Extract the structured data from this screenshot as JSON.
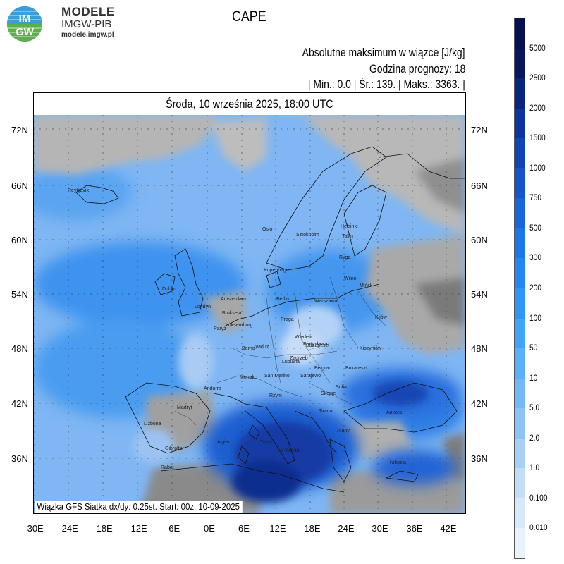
{
  "logo": {
    "text_top": "IM",
    "text_bottom": "GW",
    "title": "MODELE",
    "subtitle": "IMGW-PIB",
    "url": "modele.imgw.pl"
  },
  "header": {
    "field_name": "CAPE",
    "description": "Absolutne maksimum w wiązce [J/kg]",
    "forecast_hour": "Godzina prognozy: 18",
    "stats": "| Min.:    0.0 | Śr.:    139. | Maks.:    3363. |"
  },
  "map": {
    "date_line": "Środa, 10 września 2025, 18:00 UTC",
    "footer_note": "Wiązka GFS Siatka dx/dy: 0.25st. Start: 00z, 10-09-2025",
    "lat_labels": [
      "72N",
      "66N",
      "60N",
      "54N",
      "48N",
      "42N",
      "36N"
    ],
    "lon_labels": [
      "-30E",
      "-24E",
      "-18E",
      "-12E",
      "-6E",
      "0E",
      "6E",
      "12E",
      "18E",
      "24E",
      "30E",
      "36E",
      "42E"
    ],
    "cities": [
      {
        "name": "Reykjavik"
      },
      {
        "name": "Oslo"
      },
      {
        "name": "Sztokholm"
      },
      {
        "name": "Helsinki"
      },
      {
        "name": "Tallin"
      },
      {
        "name": "Ryga"
      },
      {
        "name": "Kopenhaga"
      },
      {
        "name": "Wilno"
      },
      {
        "name": "Mińsk"
      },
      {
        "name": "Dublin"
      },
      {
        "name": "Londyn"
      },
      {
        "name": "Amsterdam"
      },
      {
        "name": "Bruksela"
      },
      {
        "name": "Berlin"
      },
      {
        "name": "Warszawa"
      },
      {
        "name": "Kijów"
      },
      {
        "name": "Luksemburg"
      },
      {
        "name": "Paryż"
      },
      {
        "name": "Praga"
      },
      {
        "name": "Wiedeń"
      },
      {
        "name": "Bratysława"
      },
      {
        "name": "Budapeszt"
      },
      {
        "name": "Kiszyniów"
      },
      {
        "name": "Berno"
      },
      {
        "name": "Vaduz"
      },
      {
        "name": "Zagrzeb"
      },
      {
        "name": "Lublana"
      },
      {
        "name": "Bukareszt"
      },
      {
        "name": "Belgrad"
      },
      {
        "name": "Monako"
      },
      {
        "name": "San Marino"
      },
      {
        "name": "Sarajewo"
      },
      {
        "name": "Andorra"
      },
      {
        "name": "Skopje"
      },
      {
        "name": "Sofia"
      },
      {
        "name": "Rzym"
      },
      {
        "name": "Madryt"
      },
      {
        "name": "Tirana"
      },
      {
        "name": "Ankara"
      },
      {
        "name": "Lizbona"
      },
      {
        "name": "Ateny"
      },
      {
        "name": "Algier"
      },
      {
        "name": "Tunis"
      },
      {
        "name": "La Valletta"
      },
      {
        "name": "Gibraltar"
      },
      {
        "name": "Nikozja"
      },
      {
        "name": "Rabat"
      }
    ]
  },
  "legend": {
    "labels": [
      "5000",
      "2500",
      "2000",
      "1500",
      "1000",
      "750",
      "500",
      "300",
      "200",
      "100",
      "50",
      "10",
      "5.0",
      "2.0",
      "1.0",
      "0.100",
      "0.010"
    ],
    "colors": [
      "#08165e",
      "#0a2580",
      "#0c33a0",
      "#1045b8",
      "#1455cc",
      "#1766dc",
      "#1a78ea",
      "#2188f2",
      "#2b97f8",
      "#3ea5fb",
      "#5ab0fb",
      "#74b9f7",
      "#8ec3f5",
      "#a8d0f7",
      "#c2ddf8",
      "#d8e8fb",
      "#eaf2fd"
    ]
  },
  "colors": {
    "land_low": "#b8b8b8",
    "land_high": "#6e6e6e",
    "cape_light": "#9fc5f4",
    "cape_mid": "#2f8cef",
    "cape_deep": "#1238a8"
  }
}
